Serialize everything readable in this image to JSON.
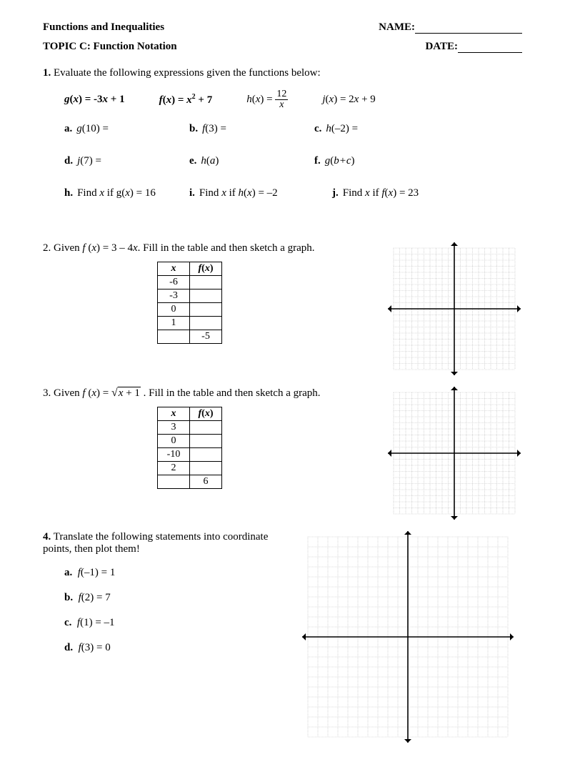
{
  "header": {
    "title": "Functions and Inequalities",
    "name_label": "NAME:",
    "topic": "TOPIC C: Function Notation",
    "date_label": "DATE:"
  },
  "q1": {
    "text": "Evaluate the following expressions given the functions below:",
    "g_lhs": "g(x) = -3x + 1",
    "f_lhs": "f(x) = x",
    "f_exp": "2",
    "f_rhs": " + 7",
    "h_lhs": "h(x) = ",
    "h_num": "12",
    "h_den": "x",
    "j_text": "j(x) = 2x + 9",
    "items": {
      "a": "g(10) =",
      "b": "f(3) =",
      "c": "h(–2) =",
      "d": "j(7) =",
      "e": "h(a)",
      "f": "g(b+c)",
      "h": "Find x if g(x) = 16",
      "i": "Find x if h(x) = –2",
      "j": "Find x if f(x) = 23"
    }
  },
  "q2": {
    "prefix": "2.  Given ",
    "func": "f (x) = 3 – 4x",
    "suffix": ".  Fill in the table and then sketch a graph.",
    "table": {
      "header_x": "x",
      "header_fx": "f(x)",
      "rows": [
        [
          "-6",
          ""
        ],
        [
          "-3",
          ""
        ],
        [
          "0",
          ""
        ],
        [
          "1",
          ""
        ],
        [
          "",
          "-5"
        ]
      ]
    }
  },
  "q3": {
    "prefix": "3.  Given ",
    "func_pre": "f (x) = ",
    "rad": "x + 1",
    "suffix": " .  Fill in the table and then sketch a graph.",
    "table": {
      "header_x": "x",
      "header_fx": "f(x)",
      "rows": [
        [
          "3",
          ""
        ],
        [
          "0",
          ""
        ],
        [
          "-10",
          ""
        ],
        [
          "2",
          ""
        ],
        [
          "",
          "6"
        ]
      ]
    }
  },
  "q4": {
    "text": "Translate the following statements into coordinate points, then plot them!",
    "items": {
      "a": "f(–1) = 1",
      "b": "f(2) = 7",
      "c": "f(1) = –1",
      "d": "f(3) = 0"
    }
  },
  "grid": {
    "small": {
      "size": 170,
      "cells": 20,
      "line": "#bbb",
      "axis": "#000"
    },
    "big": {
      "size": 280,
      "cells": 20,
      "line": "#bbb",
      "axis": "#000"
    }
  }
}
